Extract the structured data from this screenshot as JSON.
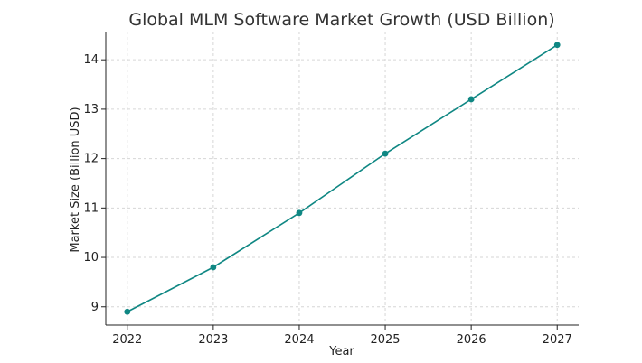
{
  "chart_data": {
    "type": "line",
    "title": "Global MLM Software Market Growth (USD Billion)",
    "xlabel": "Year",
    "ylabel": "Market Size (Billion USD)",
    "x": [
      2022,
      2023,
      2024,
      2025,
      2026,
      2027
    ],
    "x_ticks": [
      "2022",
      "2023",
      "2024",
      "2025",
      "2026",
      "2027"
    ],
    "series": [
      {
        "values": [
          8.9,
          9.8,
          10.9,
          12.1,
          13.2,
          14.3
        ],
        "color": "#0f8783",
        "marker": "circle"
      }
    ],
    "y_ticks": [
      "9",
      "10",
      "11",
      "12",
      "13",
      "14"
    ],
    "xlim": [
      2021.75,
      2027.25
    ],
    "ylim": [
      8.63,
      14.57
    ],
    "grid": true,
    "grid_style": "dashed",
    "legend": "none"
  }
}
